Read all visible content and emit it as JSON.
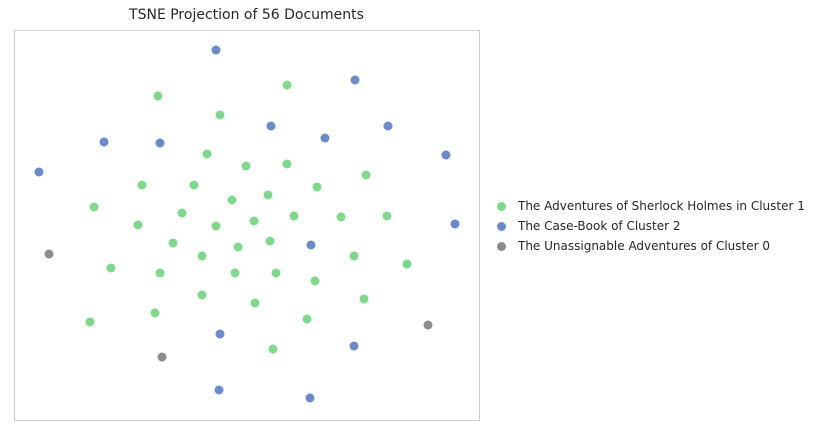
{
  "chart_data": {
    "type": "scatter",
    "title": "TSNE Projection of 56 Documents",
    "xlabel": "",
    "ylabel": "",
    "grid": false,
    "axes_ticks": false,
    "xlim": [
      0,
      465
    ],
    "ylim": [
      0,
      390
    ],
    "legend_position": "right",
    "series": [
      {
        "name": "The Adventures of Sherlock Holmes in Cluster 1",
        "color": "#7fd88c",
        "points": [
          [
            144,
            66
          ],
          [
            273,
            55
          ],
          [
            206,
            85
          ],
          [
            193,
            124
          ],
          [
            232,
            136
          ],
          [
            273,
            134
          ],
          [
            128,
            155
          ],
          [
            180,
            155
          ],
          [
            303,
            157
          ],
          [
            352,
            145
          ],
          [
            80,
            177
          ],
          [
            254,
            165
          ],
          [
            218,
            170
          ],
          [
            168,
            183
          ],
          [
            124,
            195
          ],
          [
            202,
            196
          ],
          [
            240,
            191
          ],
          [
            280,
            186
          ],
          [
            327,
            187
          ],
          [
            373,
            186
          ],
          [
            159,
            213
          ],
          [
            224,
            217
          ],
          [
            256,
            211
          ],
          [
            188,
            226
          ],
          [
            340,
            226
          ],
          [
            97,
            238
          ],
          [
            146,
            243
          ],
          [
            221,
            243
          ],
          [
            262,
            243
          ],
          [
            301,
            251
          ],
          [
            393,
            234
          ],
          [
            188,
            265
          ],
          [
            241,
            273
          ],
          [
            350,
            269
          ],
          [
            141,
            283
          ],
          [
            293,
            289
          ],
          [
            76,
            292
          ],
          [
            259,
            319
          ]
        ]
      },
      {
        "name": "The Case-Book of Cluster 2",
        "color": "#6b8ac9",
        "points": [
          [
            202,
            20
          ],
          [
            341,
            50
          ],
          [
            257,
            96
          ],
          [
            311,
            108
          ],
          [
            374,
            96
          ],
          [
            90,
            112
          ],
          [
            146,
            113
          ],
          [
            432,
            125
          ],
          [
            25,
            142
          ],
          [
            441,
            194
          ],
          [
            297,
            215
          ],
          [
            206,
            304
          ],
          [
            340,
            316
          ],
          [
            205,
            360
          ],
          [
            296,
            368
          ]
        ]
      },
      {
        "name": "The Unassignable Adventures of Cluster 0",
        "color": "#8c8c8c",
        "points": [
          [
            35,
            224
          ],
          [
            414,
            295
          ],
          [
            148,
            327
          ]
        ]
      }
    ]
  }
}
